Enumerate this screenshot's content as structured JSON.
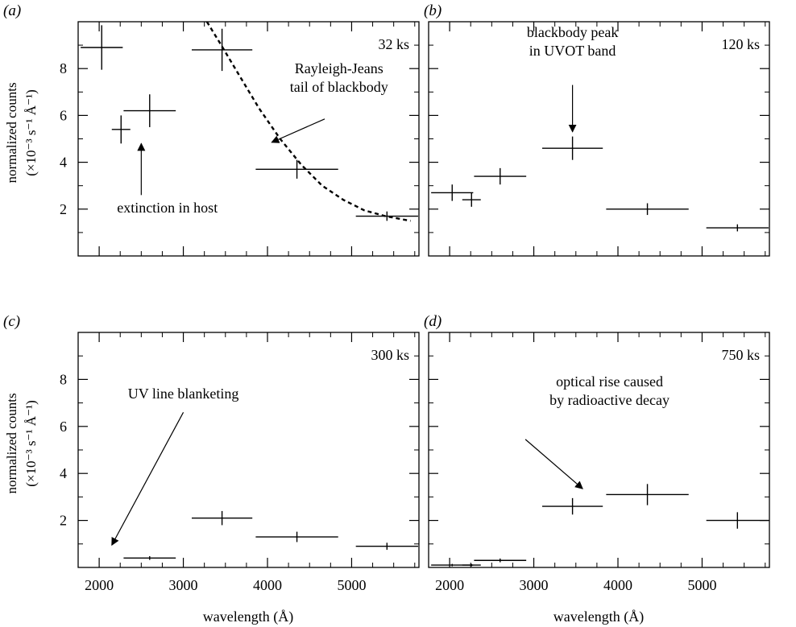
{
  "figure": {
    "ylabel_line1": "normalized counts",
    "ylabel_line2": "(×10⁻³ s⁻¹ Å⁻¹)",
    "xlabel": "wavelength (Å)"
  },
  "axes": {
    "xlim": [
      1750,
      5800
    ],
    "ylim": [
      0,
      10
    ],
    "xticks_labeled": [
      2000,
      3000,
      4000,
      5000
    ],
    "xticks_minor": [
      2250,
      2500,
      2750,
      3250,
      3500,
      3750,
      4250,
      4500,
      4750,
      5250,
      5500,
      5750
    ],
    "yticks_labeled": [
      2,
      4,
      6,
      8
    ],
    "yticks_minor": [
      1,
      3,
      5,
      7,
      9
    ]
  },
  "chart_data": [
    {
      "type": "scatter",
      "panel_label": "(a)",
      "exposure_label": "32 ks",
      "xlabel": "",
      "ylabel": "normalized counts (×10⁻³ s⁻¹ Å⁻¹)",
      "points": [
        {
          "x": 2030,
          "xerr": 250,
          "y": 8.9,
          "yerr": 0.95
        },
        {
          "x": 2260,
          "xerr": 110,
          "y": 5.4,
          "yerr": 0.6
        },
        {
          "x": 2600,
          "xerr": 310,
          "y": 6.2,
          "yerr": 0.7
        },
        {
          "x": 3460,
          "xerr": 360,
          "y": 8.8,
          "yerr": 0.9
        },
        {
          "x": 4350,
          "xerr": 490,
          "y": 3.7,
          "yerr": 0.4
        },
        {
          "x": 5420,
          "xerr": 370,
          "y": 1.7,
          "yerr": 0.2
        }
      ],
      "curve": {
        "style": "dashed",
        "x": [
          3280,
          3450,
          3650,
          3900,
          4150,
          4400,
          4650,
          4900,
          5150,
          5400,
          5700
        ],
        "y": [
          10.0,
          9.0,
          7.8,
          6.3,
          5.0,
          3.9,
          3.0,
          2.4,
          1.95,
          1.7,
          1.5
        ]
      },
      "annotations": [
        {
          "lines": [
            "Rayleigh-Jeans",
            "tail of blackbody"
          ],
          "x": 4850,
          "y": 7.8,
          "arrow_to": [
            4050,
            4.85
          ],
          "arrow_from": [
            4680,
            5.85
          ]
        },
        {
          "lines": [
            "extinction in host"
          ],
          "x": 2810,
          "y": 1.85,
          "arrow_to": [
            2500,
            4.8
          ],
          "arrow_from": [
            2500,
            2.6
          ]
        }
      ]
    },
    {
      "type": "scatter",
      "panel_label": "(b)",
      "exposure_label": "120 ks",
      "xlabel": "",
      "ylabel": "",
      "points": [
        {
          "x": 2030,
          "xerr": 250,
          "y": 2.7,
          "yerr": 0.35
        },
        {
          "x": 2260,
          "xerr": 110,
          "y": 2.4,
          "yerr": 0.3
        },
        {
          "x": 2600,
          "xerr": 310,
          "y": 3.4,
          "yerr": 0.35
        },
        {
          "x": 3460,
          "xerr": 360,
          "y": 4.6,
          "yerr": 0.5
        },
        {
          "x": 4350,
          "xerr": 490,
          "y": 2.0,
          "yerr": 0.25
        },
        {
          "x": 5420,
          "xerr": 370,
          "y": 1.2,
          "yerr": 0.15
        }
      ],
      "curve": null,
      "annotations": [
        {
          "lines": [
            "blackbody peak",
            "in UVOT band"
          ],
          "x": 3460,
          "y": 9.35,
          "arrow_to": [
            3460,
            5.3
          ],
          "arrow_from": [
            3460,
            7.3
          ]
        }
      ]
    },
    {
      "type": "scatter",
      "panel_label": "(c)",
      "exposure_label": "300 ks",
      "xlabel": "wavelength (Å)",
      "ylabel": "normalized counts (×10⁻³ s⁻¹ Å⁻¹)",
      "points": [
        {
          "x": 2600,
          "xerr": 310,
          "y": 0.4,
          "yerr": 0.08
        },
        {
          "x": 3460,
          "xerr": 360,
          "y": 2.1,
          "yerr": 0.3
        },
        {
          "x": 4350,
          "xerr": 490,
          "y": 1.3,
          "yerr": 0.22
        },
        {
          "x": 5420,
          "xerr": 370,
          "y": 0.9,
          "yerr": 0.15
        }
      ],
      "curve": null,
      "annotations": [
        {
          "lines": [
            "UV line blanketing"
          ],
          "x": 3000,
          "y": 7.2,
          "arrow_to": [
            2150,
            0.95
          ],
          "arrow_from": [
            3000,
            6.6
          ]
        }
      ]
    },
    {
      "type": "scatter",
      "panel_label": "(d)",
      "exposure_label": "750 ks",
      "xlabel": "wavelength (Å)",
      "ylabel": "",
      "points": [
        {
          "x": 2030,
          "xerr": 250,
          "y": 0.1,
          "yerr": 0.05
        },
        {
          "x": 2260,
          "xerr": 110,
          "y": 0.1,
          "yerr": 0.05
        },
        {
          "x": 2600,
          "xerr": 310,
          "y": 0.3,
          "yerr": 0.08
        },
        {
          "x": 3460,
          "xerr": 360,
          "y": 2.6,
          "yerr": 0.35
        },
        {
          "x": 4350,
          "xerr": 490,
          "y": 3.1,
          "yerr": 0.45
        },
        {
          "x": 5420,
          "xerr": 370,
          "y": 2.0,
          "yerr": 0.35
        }
      ],
      "curve": null,
      "annotations": [
        {
          "lines": [
            "optical rise caused",
            "by radioactive decay"
          ],
          "x": 3900,
          "y": 7.7,
          "arrow_to": [
            3580,
            3.35
          ],
          "arrow_from": [
            2900,
            5.45
          ]
        }
      ]
    }
  ]
}
